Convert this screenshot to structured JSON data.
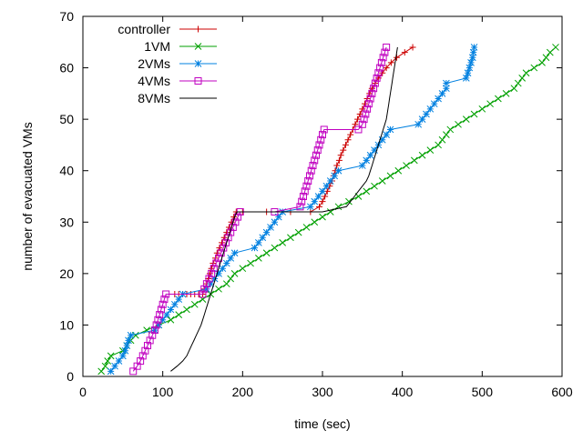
{
  "chart_data": {
    "type": "line",
    "title": "",
    "xlabel": "time (sec)",
    "ylabel": "number of evacuated VMs",
    "xlim": [
      0,
      600
    ],
    "ylim": [
      0,
      70
    ],
    "xticks": [
      0,
      100,
      200,
      300,
      400,
      500,
      600
    ],
    "yticks": [
      0,
      10,
      20,
      30,
      40,
      50,
      60,
      70
    ],
    "grid": false,
    "legend_position": "top-left",
    "series": [
      {
        "name": "controller",
        "color": "#cc0000",
        "marker": "plus",
        "points": [
          [
            115,
            16
          ],
          [
            120,
            16
          ],
          [
            125,
            16
          ],
          [
            130,
            16
          ],
          [
            135,
            16
          ],
          [
            140,
            16
          ],
          [
            145,
            16
          ],
          [
            150,
            16
          ],
          [
            152,
            17
          ],
          [
            155,
            18
          ],
          [
            157,
            19
          ],
          [
            159,
            20
          ],
          [
            161,
            21
          ],
          [
            163,
            22
          ],
          [
            166,
            23
          ],
          [
            168,
            24
          ],
          [
            171,
            25
          ],
          [
            174,
            26
          ],
          [
            177,
            27
          ],
          [
            180,
            28
          ],
          [
            183,
            29
          ],
          [
            186,
            30
          ],
          [
            189,
            31
          ],
          [
            192,
            32
          ],
          [
            200,
            32
          ],
          [
            230,
            32
          ],
          [
            260,
            32
          ],
          [
            285,
            32
          ],
          [
            296,
            33
          ],
          [
            300,
            34
          ],
          [
            303,
            35
          ],
          [
            306,
            36
          ],
          [
            309,
            37
          ],
          [
            312,
            38
          ],
          [
            314,
            39
          ],
          [
            316,
            40
          ],
          [
            318,
            41
          ],
          [
            321,
            42
          ],
          [
            323,
            43
          ],
          [
            326,
            44
          ],
          [
            329,
            45
          ],
          [
            332,
            46
          ],
          [
            335,
            47
          ],
          [
            338,
            48
          ],
          [
            341,
            49
          ],
          [
            344,
            50
          ],
          [
            347,
            51
          ],
          [
            350,
            52
          ],
          [
            353,
            53
          ],
          [
            356,
            54
          ],
          [
            359,
            55
          ],
          [
            362,
            56
          ],
          [
            366,
            57
          ],
          [
            370,
            58
          ],
          [
            375,
            59
          ],
          [
            380,
            60
          ],
          [
            386,
            61
          ],
          [
            393,
            62
          ],
          [
            403,
            63
          ],
          [
            413,
            64
          ]
        ]
      },
      {
        "name": "1VM",
        "color": "#00a000",
        "marker": "x",
        "points": [
          [
            23,
            1
          ],
          [
            28,
            2
          ],
          [
            31,
            3
          ],
          [
            35,
            4
          ],
          [
            50,
            5
          ],
          [
            55,
            6
          ],
          [
            60,
            7
          ],
          [
            66,
            8
          ],
          [
            80,
            9
          ],
          [
            95,
            10
          ],
          [
            110,
            11
          ],
          [
            120,
            12
          ],
          [
            130,
            13
          ],
          [
            140,
            14
          ],
          [
            150,
            15
          ],
          [
            160,
            16
          ],
          [
            170,
            17
          ],
          [
            180,
            18
          ],
          [
            185,
            19
          ],
          [
            190,
            20
          ],
          [
            200,
            21
          ],
          [
            210,
            22
          ],
          [
            220,
            23
          ],
          [
            230,
            24
          ],
          [
            240,
            25
          ],
          [
            250,
            26
          ],
          [
            260,
            27
          ],
          [
            270,
            28
          ],
          [
            280,
            29
          ],
          [
            290,
            30
          ],
          [
            300,
            31
          ],
          [
            310,
            32
          ],
          [
            320,
            33
          ],
          [
            333,
            34
          ],
          [
            345,
            35
          ],
          [
            355,
            36
          ],
          [
            365,
            37
          ],
          [
            375,
            38
          ],
          [
            385,
            39
          ],
          [
            395,
            40
          ],
          [
            405,
            41
          ],
          [
            415,
            42
          ],
          [
            425,
            43
          ],
          [
            435,
            44
          ],
          [
            445,
            45
          ],
          [
            450,
            46
          ],
          [
            455,
            47
          ],
          [
            460,
            48
          ],
          [
            470,
            49
          ],
          [
            480,
            50
          ],
          [
            490,
            51
          ],
          [
            500,
            52
          ],
          [
            510,
            53
          ],
          [
            520,
            54
          ],
          [
            530,
            55
          ],
          [
            540,
            56
          ],
          [
            545,
            57
          ],
          [
            550,
            58
          ],
          [
            555,
            59
          ],
          [
            565,
            60
          ],
          [
            575,
            61
          ],
          [
            580,
            62
          ],
          [
            585,
            63
          ],
          [
            592,
            64
          ]
        ]
      },
      {
        "name": "2VMs",
        "color": "#0080e0",
        "marker": "star",
        "points": [
          [
            35,
            1
          ],
          [
            40,
            2
          ],
          [
            45,
            3
          ],
          [
            50,
            4
          ],
          [
            53,
            5
          ],
          [
            55,
            6
          ],
          [
            57,
            7
          ],
          [
            60,
            8
          ],
          [
            90,
            9
          ],
          [
            95,
            10
          ],
          [
            100,
            11
          ],
          [
            105,
            12
          ],
          [
            110,
            13
          ],
          [
            115,
            14
          ],
          [
            120,
            15
          ],
          [
            125,
            16
          ],
          [
            155,
            17
          ],
          [
            160,
            18
          ],
          [
            165,
            19
          ],
          [
            170,
            20
          ],
          [
            175,
            21
          ],
          [
            180,
            22
          ],
          [
            185,
            23
          ],
          [
            190,
            24
          ],
          [
            215,
            25
          ],
          [
            220,
            26
          ],
          [
            225,
            27
          ],
          [
            230,
            28
          ],
          [
            235,
            29
          ],
          [
            240,
            30
          ],
          [
            245,
            31
          ],
          [
            250,
            32
          ],
          [
            285,
            33
          ],
          [
            290,
            34
          ],
          [
            295,
            35
          ],
          [
            300,
            36
          ],
          [
            305,
            37
          ],
          [
            310,
            38
          ],
          [
            315,
            39
          ],
          [
            320,
            40
          ],
          [
            350,
            41
          ],
          [
            355,
            42
          ],
          [
            360,
            43
          ],
          [
            365,
            44
          ],
          [
            370,
            45
          ],
          [
            375,
            46
          ],
          [
            380,
            47
          ],
          [
            385,
            48
          ],
          [
            420,
            49
          ],
          [
            425,
            50
          ],
          [
            430,
            51
          ],
          [
            435,
            52
          ],
          [
            440,
            53
          ],
          [
            445,
            54
          ],
          [
            450,
            55
          ],
          [
            455,
            56
          ],
          [
            455,
            57
          ],
          [
            480,
            58
          ],
          [
            482,
            59
          ],
          [
            484,
            60
          ],
          [
            486,
            61
          ],
          [
            488,
            62
          ],
          [
            489,
            63
          ],
          [
            490,
            64
          ]
        ]
      },
      {
        "name": "4VMs",
        "color": "#c000c0",
        "marker": "square",
        "points": [
          [
            63,
            1
          ],
          [
            68,
            2
          ],
          [
            72,
            3
          ],
          [
            75,
            4
          ],
          [
            78,
            5
          ],
          [
            81,
            6
          ],
          [
            84,
            7
          ],
          [
            87,
            8
          ],
          [
            90,
            9
          ],
          [
            92,
            10
          ],
          [
            94,
            11
          ],
          [
            96,
            12
          ],
          [
            98,
            13
          ],
          [
            100,
            14
          ],
          [
            102,
            15
          ],
          [
            104,
            16
          ],
          [
            150,
            16
          ],
          [
            152,
            17
          ],
          [
            155,
            18
          ],
          [
            158,
            19
          ],
          [
            161,
            20
          ],
          [
            164,
            21
          ],
          [
            167,
            22
          ],
          [
            170,
            23
          ],
          [
            173,
            24
          ],
          [
            176,
            25
          ],
          [
            179,
            26
          ],
          [
            182,
            27
          ],
          [
            185,
            28
          ],
          [
            188,
            29
          ],
          [
            191,
            30
          ],
          [
            194,
            31
          ],
          [
            197,
            32
          ],
          [
            240,
            32
          ],
          [
            272,
            33
          ],
          [
            274,
            34
          ],
          [
            276,
            35
          ],
          [
            278,
            36
          ],
          [
            280,
            37
          ],
          [
            282,
            38
          ],
          [
            284,
            39
          ],
          [
            286,
            40
          ],
          [
            288,
            41
          ],
          [
            290,
            42
          ],
          [
            292,
            43
          ],
          [
            294,
            44
          ],
          [
            296,
            45
          ],
          [
            298,
            46
          ],
          [
            300,
            47
          ],
          [
            302,
            48
          ],
          [
            345,
            48
          ],
          [
            350,
            49
          ],
          [
            352,
            50
          ],
          [
            354,
            51
          ],
          [
            356,
            52
          ],
          [
            358,
            53
          ],
          [
            360,
            54
          ],
          [
            362,
            55
          ],
          [
            364,
            56
          ],
          [
            366,
            57
          ],
          [
            368,
            58
          ],
          [
            370,
            59
          ],
          [
            372,
            60
          ],
          [
            374,
            61
          ],
          [
            376,
            62
          ],
          [
            378,
            63
          ],
          [
            380,
            64
          ]
        ]
      },
      {
        "name": "8VMs",
        "color": "#000000",
        "marker": "none",
        "points": [
          [
            110,
            1
          ],
          [
            118,
            2
          ],
          [
            125,
            3
          ],
          [
            130,
            4
          ],
          [
            133,
            5
          ],
          [
            136,
            6
          ],
          [
            139,
            7
          ],
          [
            142,
            8
          ],
          [
            145,
            9
          ],
          [
            148,
            10
          ],
          [
            150,
            11
          ],
          [
            152,
            12
          ],
          [
            154,
            13
          ],
          [
            156,
            14
          ],
          [
            158,
            15
          ],
          [
            160,
            16
          ],
          [
            162,
            17
          ],
          [
            164,
            18
          ],
          [
            166,
            19
          ],
          [
            168,
            20
          ],
          [
            170,
            21
          ],
          [
            172,
            22
          ],
          [
            174,
            23
          ],
          [
            176,
            24
          ],
          [
            178,
            25
          ],
          [
            180,
            26
          ],
          [
            182,
            27
          ],
          [
            184,
            28
          ],
          [
            186,
            29
          ],
          [
            188,
            30
          ],
          [
            190,
            31
          ],
          [
            193,
            32
          ],
          [
            250,
            32
          ],
          [
            300,
            32
          ],
          [
            330,
            33
          ],
          [
            335,
            34
          ],
          [
            340,
            35
          ],
          [
            345,
            36
          ],
          [
            350,
            37
          ],
          [
            355,
            38
          ],
          [
            358,
            39
          ],
          [
            360,
            40
          ],
          [
            362,
            41
          ],
          [
            364,
            42
          ],
          [
            366,
            43
          ],
          [
            368,
            44
          ],
          [
            370,
            45
          ],
          [
            372,
            46
          ],
          [
            374,
            47
          ],
          [
            376,
            48
          ],
          [
            378,
            49
          ],
          [
            380,
            50
          ],
          [
            381,
            51
          ],
          [
            382,
            52
          ],
          [
            383,
            53
          ],
          [
            384,
            54
          ],
          [
            385,
            55
          ],
          [
            386,
            56
          ],
          [
            387,
            57
          ],
          [
            388,
            58
          ],
          [
            389,
            59
          ],
          [
            390,
            60
          ],
          [
            391,
            61
          ],
          [
            392,
            62
          ],
          [
            393,
            63
          ],
          [
            394,
            64
          ]
        ]
      }
    ]
  }
}
